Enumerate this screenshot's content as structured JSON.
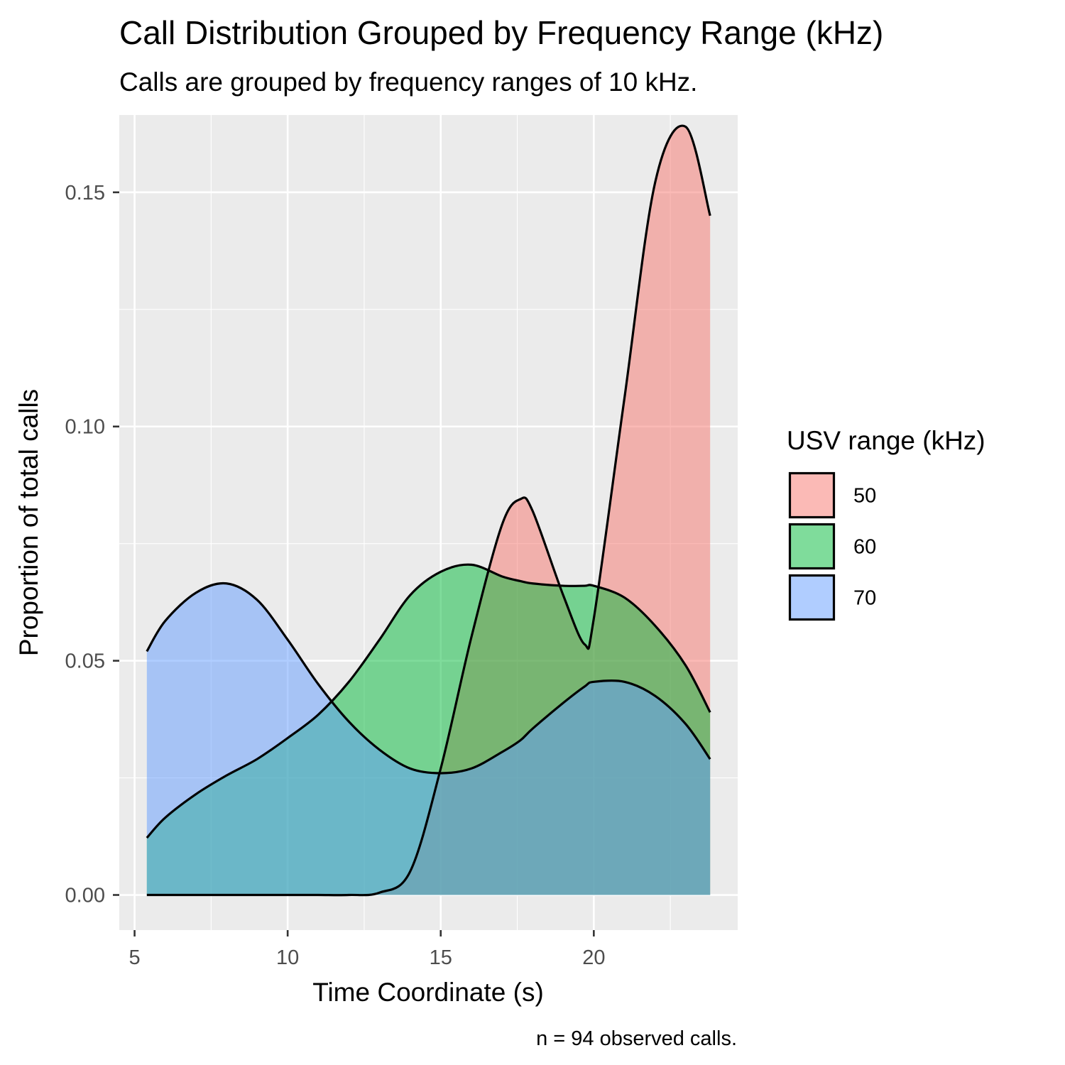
{
  "chart_data": {
    "type": "area",
    "title": "Call Distribution Grouped by Frequency Range (kHz)",
    "subtitle": "Calls are grouped by frequency ranges of 10 kHz.",
    "caption": "n = 94 observed calls.",
    "xlabel": "Time Coordinate (s)",
    "ylabel": "Proportion of total calls",
    "xlim": [
      4.5,
      24.7
    ],
    "ylim": [
      -0.0075,
      0.1665
    ],
    "x_ticks": [
      5,
      10,
      15,
      20
    ],
    "x_tick_labels": [
      "5",
      "10",
      "15",
      "20"
    ],
    "y_ticks": [
      0,
      0.05,
      0.1,
      0.15
    ],
    "y_tick_labels": [
      "0.00",
      "0.05",
      "0.10",
      "0.15"
    ],
    "grid": true,
    "legend": {
      "title": "USV range (kHz)",
      "position": "right"
    },
    "x": [
      5.4,
      6,
      7,
      8,
      9,
      10,
      11,
      12,
      13,
      14,
      15,
      16,
      17,
      17.6,
      18,
      19,
      19.7,
      20,
      21,
      22,
      23,
      23.8
    ],
    "series": [
      {
        "name": "50",
        "color": "#F8766D",
        "values": [
          0,
          0,
          0,
          0,
          0,
          0,
          0,
          0,
          0.0005,
          0.005,
          0.027,
          0.055,
          0.079,
          0.0845,
          0.082,
          0.064,
          0.0535,
          0.059,
          0.106,
          0.152,
          0.164,
          0.145
        ]
      },
      {
        "name": "60",
        "color": "#00BA38",
        "values": [
          0.0122,
          0.0165,
          0.0215,
          0.0255,
          0.029,
          0.0335,
          0.0385,
          0.0455,
          0.0545,
          0.064,
          0.069,
          0.0705,
          0.068,
          0.067,
          0.0665,
          0.066,
          0.066,
          0.066,
          0.0635,
          0.0575,
          0.049,
          0.039
        ]
      },
      {
        "name": "70",
        "color": "#619CFF",
        "values": [
          0.052,
          0.0585,
          0.0645,
          0.0665,
          0.063,
          0.0545,
          0.045,
          0.037,
          0.031,
          0.027,
          0.026,
          0.027,
          0.0305,
          0.033,
          0.0355,
          0.041,
          0.0445,
          0.0455,
          0.0455,
          0.0425,
          0.0365,
          0.029
        ]
      }
    ]
  }
}
